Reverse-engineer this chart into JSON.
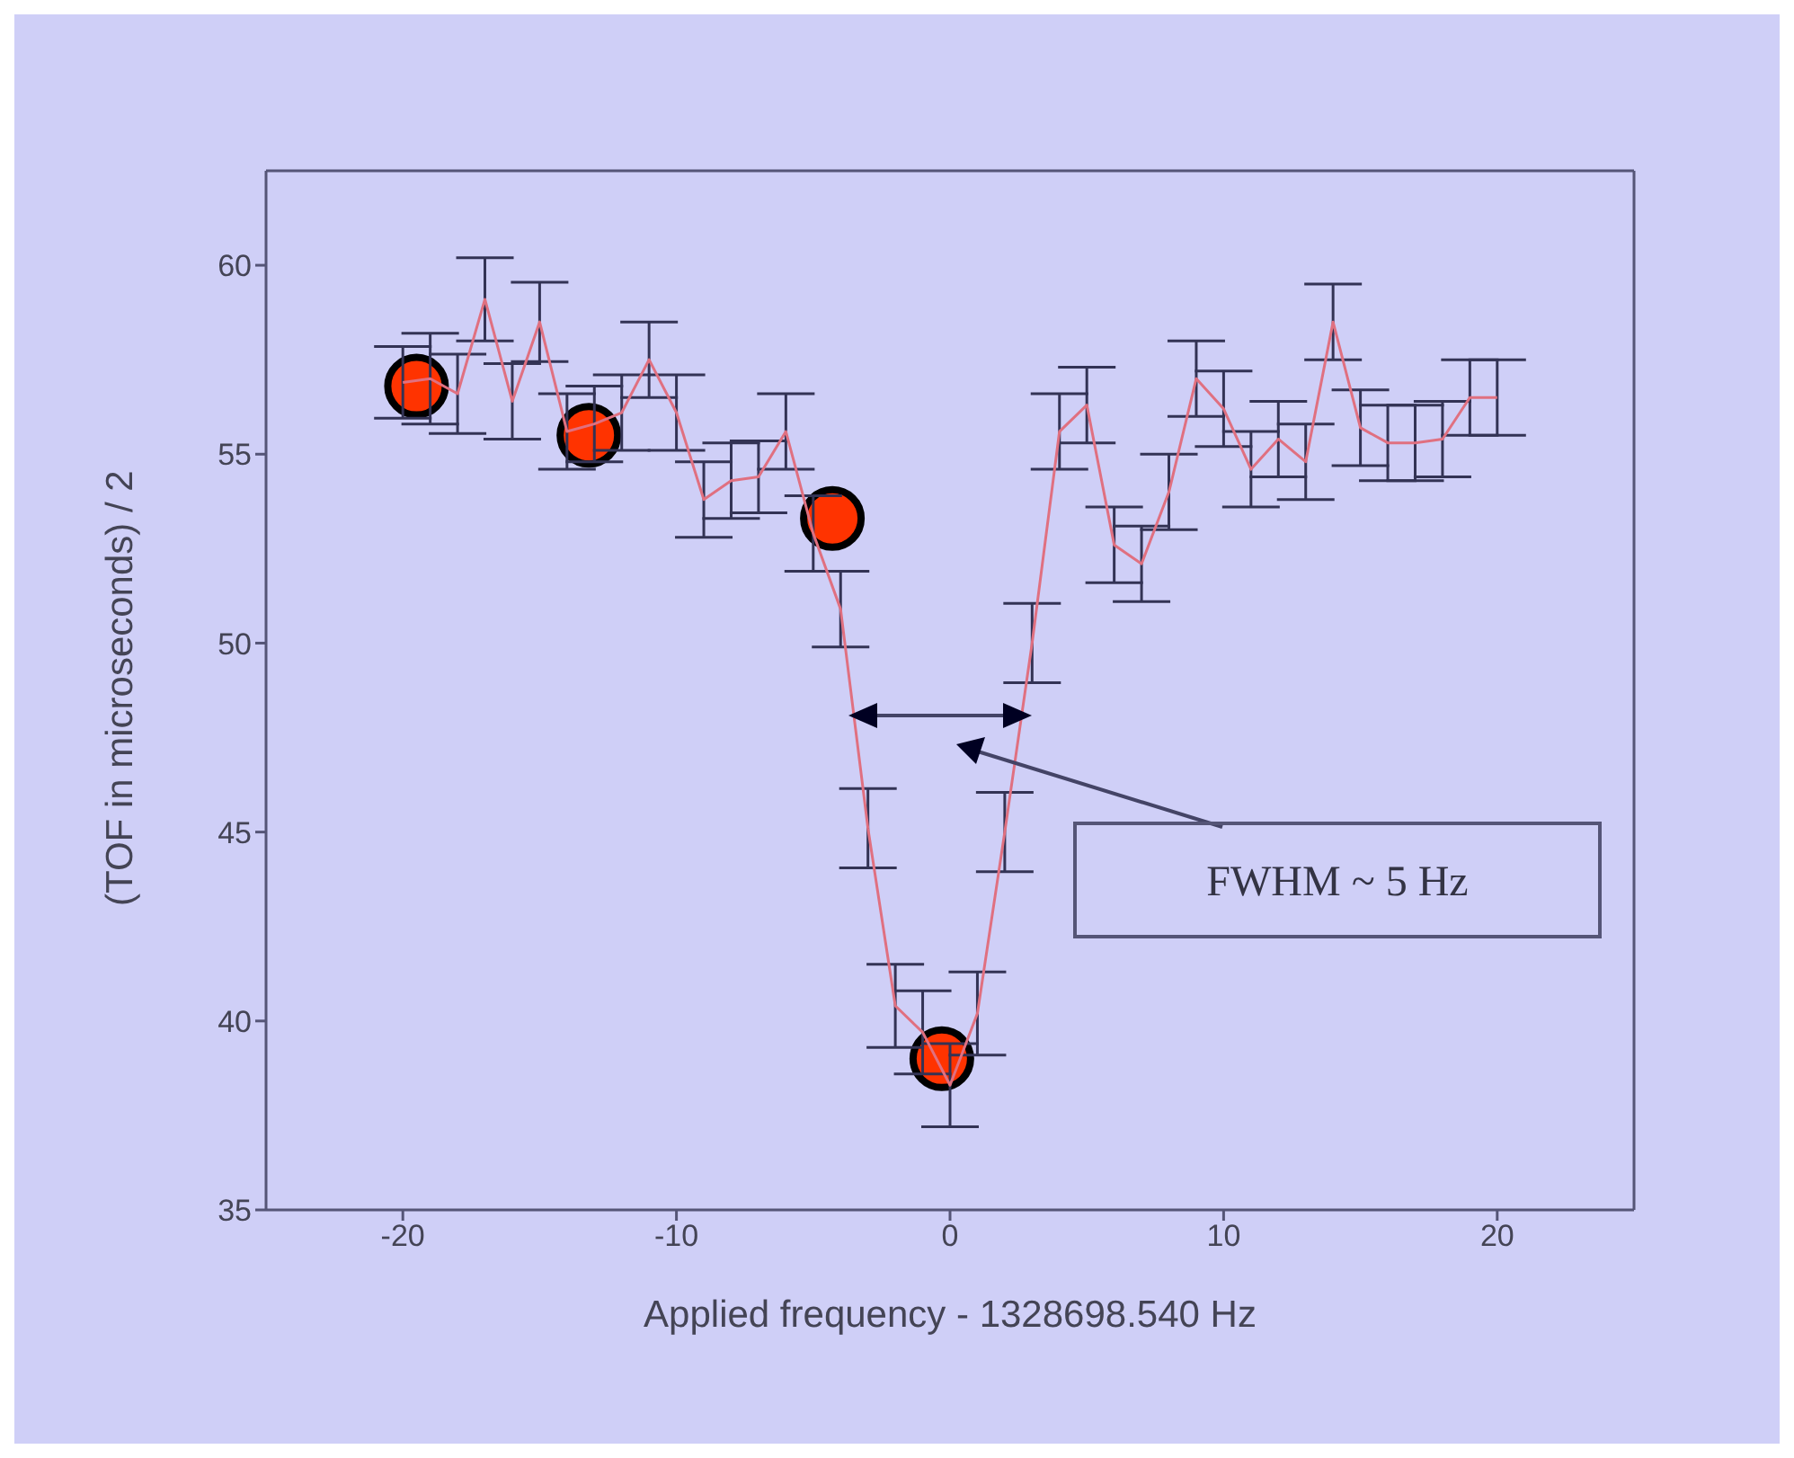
{
  "chart_data": {
    "type": "line",
    "xlabel": "Applied frequency - 1328698.540 Hz",
    "ylabel": "(TOF in microseconds) / 2",
    "xlim": [
      -25,
      25
    ],
    "xticks": [
      -20,
      -10,
      0,
      10,
      20
    ],
    "ylim": [
      35,
      62.5
    ],
    "yticks": [
      35,
      40,
      45,
      50,
      55,
      60
    ],
    "series": [
      {
        "type": "line",
        "color": "#e07080",
        "marker": "none",
        "line_style": "solid",
        "x": [
          -20,
          -19,
          -18,
          -17,
          -16,
          -15,
          -14,
          -13,
          -12,
          -11,
          -10,
          -9,
          -8,
          -7,
          -6,
          -5,
          -4,
          -3,
          -2,
          -1,
          0,
          1,
          2,
          3,
          4,
          5,
          6,
          7,
          8,
          9,
          10,
          11,
          12,
          13,
          14,
          15,
          16,
          17,
          18,
          19,
          20
        ],
        "values": [
          56.9,
          57.0,
          56.6,
          59.1,
          56.4,
          58.5,
          55.6,
          55.8,
          56.1,
          57.5,
          56.1,
          53.8,
          54.3,
          54.4,
          55.6,
          52.9,
          50.9,
          45.1,
          40.4,
          39.7,
          38.3,
          40.2,
          45.0,
          50.0,
          55.6,
          56.3,
          52.6,
          52.1,
          54.0,
          57.0,
          56.2,
          54.6,
          55.4,
          54.8,
          58.5,
          55.7,
          55.3,
          55.3,
          55.4,
          56.5,
          56.5
        ],
        "errors": [
          0.95,
          1.2,
          1.05,
          1.1,
          1.0,
          1.05,
          1.0,
          1.0,
          1.0,
          1.0,
          1.0,
          1.0,
          1.0,
          0.95,
          1.0,
          1.0,
          1.0,
          1.05,
          1.1,
          1.1,
          1.1,
          1.1,
          1.05,
          1.05,
          1.0,
          1.0,
          1.0,
          1.0,
          1.0,
          1.0,
          1.0,
          1.0,
          1.0,
          1.0,
          1.0,
          1.0,
          1.0,
          1.0,
          1.0,
          1.0,
          1.0
        ]
      },
      {
        "type": "scatter",
        "color": "#ff3300",
        "marker": "circle",
        "x": [
          -19.5,
          -13.2,
          -4.3,
          -0.3
        ],
        "values": [
          56.8,
          55.5,
          53.3,
          39.0
        ]
      }
    ],
    "annotations": [
      "FWHM ~ 5 Hz"
    ]
  }
}
